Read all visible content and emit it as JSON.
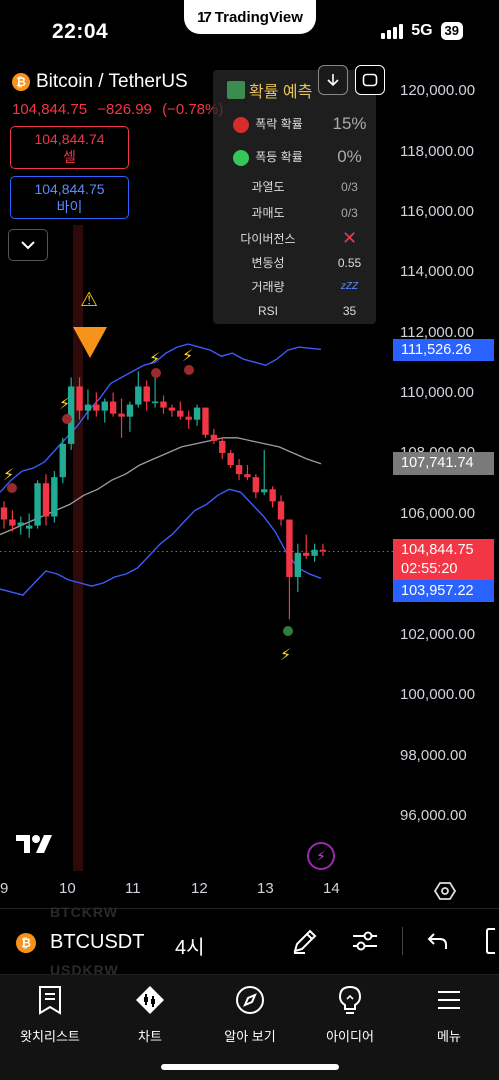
{
  "status": {
    "time": "22:04",
    "network": "5G",
    "battery": "39",
    "center_app": "TradingView"
  },
  "symbol": {
    "name": "Bitcoin / TetherUS",
    "price": "104,844.75",
    "change": "−826.99",
    "change_pct": "(−0.78%)"
  },
  "sell": {
    "price": "104,844.74",
    "label": "셀"
  },
  "buy": {
    "price": "104,844.75",
    "label": "바이"
  },
  "prediction": {
    "title": "확률 예측",
    "crash_label": "폭락 확률",
    "crash_value": "15%",
    "surge_label": "폭등 확률",
    "surge_value": "0%",
    "overheat_label": "과열도",
    "overheat_value": "0/3",
    "oversold_label": "과매도",
    "oversold_value": "0/3",
    "divergence_label": "다이버전스",
    "divergence_value": "✕",
    "volatility_label": "변동성",
    "volatility_value": "0.55",
    "volume_label": "거래량",
    "volume_value": "zZZ",
    "rsi_label": "RSI",
    "rsi_value": "35"
  },
  "yaxis": [
    "120,000.00",
    "118,000.00",
    "116,000.00",
    "114,000.00",
    "112,000.00",
    "110,000.00",
    "108,000.00",
    "106,000.00",
    "102,000.00",
    "100,000.00",
    "98,000.00",
    "96,000.00"
  ],
  "tags": {
    "upper_band": "111,526.26",
    "middle_band": "107,741.74",
    "last_price": "104,844.75",
    "countdown": "02:55:20",
    "lower_band": "103,957.22"
  },
  "xaxis": [
    "9",
    "10",
    "11",
    "12",
    "13",
    "14"
  ],
  "symbol_bar": {
    "ticker": "BTCUSDT",
    "interval": "4시",
    "ghost_top": "BTCKRW",
    "ghost_bottom": "USDKRW"
  },
  "nav": [
    "왓치리스트",
    "차트",
    "알아 보기",
    "아이디어",
    "메뉴"
  ],
  "colors": {
    "up": "#22ab94",
    "down": "#f23645",
    "band": "#3d5afe",
    "mid": "#9e9e9e"
  },
  "chart_data": {
    "type": "candlestick",
    "interval": "4h",
    "ylim": [
      94500,
      121500
    ],
    "candles": [
      {
        "o": 106300,
        "h": 106500,
        "l": 105600,
        "c": 105900
      },
      {
        "o": 105900,
        "h": 106200,
        "l": 105500,
        "c": 105700
      },
      {
        "o": 105700,
        "h": 106000,
        "l": 105400,
        "c": 105800
      },
      {
        "o": 105600,
        "h": 106100,
        "l": 105300,
        "c": 105700
      },
      {
        "o": 105700,
        "h": 107200,
        "l": 105600,
        "c": 107100
      },
      {
        "o": 107100,
        "h": 107400,
        "l": 105700,
        "c": 106000
      },
      {
        "o": 106000,
        "h": 107500,
        "l": 105800,
        "c": 107300
      },
      {
        "o": 107300,
        "h": 108600,
        "l": 107100,
        "c": 108400
      },
      {
        "o": 108400,
        "h": 110600,
        "l": 108200,
        "c": 110300
      },
      {
        "o": 110300,
        "h": 110600,
        "l": 109200,
        "c": 109500
      },
      {
        "o": 109500,
        "h": 110200,
        "l": 109200,
        "c": 109700
      },
      {
        "o": 109700,
        "h": 110100,
        "l": 109300,
        "c": 109500
      },
      {
        "o": 109500,
        "h": 109900,
        "l": 109100,
        "c": 109800
      },
      {
        "o": 109800,
        "h": 110100,
        "l": 109300,
        "c": 109400
      },
      {
        "o": 109400,
        "h": 109900,
        "l": 108600,
        "c": 109300
      },
      {
        "o": 109300,
        "h": 109800,
        "l": 108800,
        "c": 109700
      },
      {
        "o": 109700,
        "h": 110800,
        "l": 109600,
        "c": 110300
      },
      {
        "o": 110300,
        "h": 110500,
        "l": 109500,
        "c": 109800
      },
      {
        "o": 109800,
        "h": 110700,
        "l": 109600,
        "c": 109800
      },
      {
        "o": 109800,
        "h": 110000,
        "l": 109400,
        "c": 109600
      },
      {
        "o": 109600,
        "h": 109700,
        "l": 109300,
        "c": 109500
      },
      {
        "o": 109500,
        "h": 109800,
        "l": 109200,
        "c": 109300
      },
      {
        "o": 109300,
        "h": 109500,
        "l": 108900,
        "c": 109200
      },
      {
        "o": 109200,
        "h": 109700,
        "l": 109000,
        "c": 109600
      },
      {
        "o": 109600,
        "h": 109600,
        "l": 108600,
        "c": 108700
      },
      {
        "o": 108700,
        "h": 108900,
        "l": 108400,
        "c": 108500
      },
      {
        "o": 108500,
        "h": 108600,
        "l": 107900,
        "c": 108100
      },
      {
        "o": 108100,
        "h": 108200,
        "l": 107600,
        "c": 107700
      },
      {
        "o": 107700,
        "h": 107900,
        "l": 107200,
        "c": 107400
      },
      {
        "o": 107400,
        "h": 107700,
        "l": 107200,
        "c": 107300
      },
      {
        "o": 107300,
        "h": 107400,
        "l": 106600,
        "c": 106800
      },
      {
        "o": 106800,
        "h": 108200,
        "l": 106700,
        "c": 106900
      },
      {
        "o": 106900,
        "h": 107000,
        "l": 106300,
        "c": 106500
      },
      {
        "o": 106500,
        "h": 106700,
        "l": 105700,
        "c": 105900
      },
      {
        "o": 105900,
        "h": 105900,
        "l": 102600,
        "c": 104000
      },
      {
        "o": 104000,
        "h": 105100,
        "l": 103500,
        "c": 104800
      },
      {
        "o": 104800,
        "h": 105400,
        "l": 104600,
        "c": 104700
      },
      {
        "o": 104700,
        "h": 105100,
        "l": 104500,
        "c": 104900
      },
      {
        "o": 104900,
        "h": 105100,
        "l": 104700,
        "c": 104845
      }
    ],
    "upper_band": [
      106800,
      107200,
      107500,
      107600,
      107800,
      108200,
      108600,
      109000,
      109500,
      109900,
      110400,
      110600,
      110800,
      111000,
      111100,
      111400,
      111600,
      111700,
      111600,
      111500,
      111300,
      111400,
      111200,
      111100,
      111000,
      111200,
      111500,
      111600,
      111560,
      111526
    ],
    "middle_band": [
      105400,
      105600,
      105800,
      106000,
      106200,
      106400,
      106700,
      106900,
      107200,
      107400,
      107700,
      107900,
      108100,
      108300,
      108400,
      108500,
      108600,
      108600,
      108500,
      108400,
      108300,
      108100,
      107900,
      107741
    ],
    "lower_band": [
      103600,
      103500,
      103400,
      103800,
      104200,
      104100,
      103900,
      103800,
      103700,
      103800,
      104000,
      104100,
      104300,
      104700,
      105100,
      105400,
      105800,
      106200,
      106400,
      106700,
      106900,
      106800,
      106400,
      106000,
      105500,
      104800,
      104300,
      104100,
      103957
    ],
    "last_price": 104844.75,
    "xticks": [
      "9",
      "10",
      "11",
      "12",
      "13",
      "14"
    ]
  }
}
